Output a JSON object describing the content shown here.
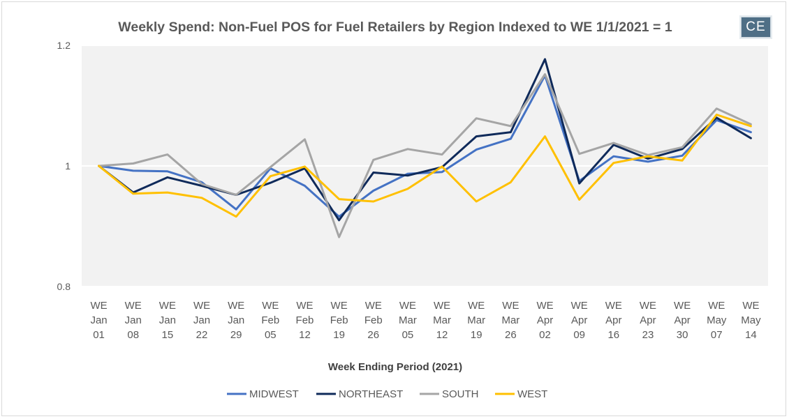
{
  "badge": {
    "text": "CE"
  },
  "chart_data": {
    "type": "line",
    "title": "Weekly Spend: Non-Fuel POS for Fuel Retailers by Region Indexed to WE 1/1/2021 = 1",
    "xlabel": "Week Ending Period (2021)",
    "ylabel": "",
    "ylim": [
      0.8,
      1.2
    ],
    "yticks": [
      "0.8",
      "1",
      "1.2"
    ],
    "categories": [
      [
        "WE",
        "Jan",
        "01"
      ],
      [
        "WE",
        "Jan",
        "08"
      ],
      [
        "WE",
        "Jan",
        "15"
      ],
      [
        "WE",
        "Jan",
        "22"
      ],
      [
        "WE",
        "Jan",
        "29"
      ],
      [
        "WE",
        "Feb",
        "05"
      ],
      [
        "WE",
        "Feb",
        "12"
      ],
      [
        "WE",
        "Feb",
        "19"
      ],
      [
        "WE",
        "Feb",
        "26"
      ],
      [
        "WE",
        "Mar",
        "05"
      ],
      [
        "WE",
        "Mar",
        "12"
      ],
      [
        "WE",
        "Mar",
        "19"
      ],
      [
        "WE",
        "Mar",
        "26"
      ],
      [
        "WE",
        "Apr",
        "02"
      ],
      [
        "WE",
        "Apr",
        "09"
      ],
      [
        "WE",
        "Apr",
        "16"
      ],
      [
        "WE",
        "Apr",
        "23"
      ],
      [
        "WE",
        "Apr",
        "30"
      ],
      [
        "WE",
        "May",
        "07"
      ],
      [
        "WE",
        "May",
        "14"
      ]
    ],
    "grid": "y-major-white",
    "plot_background": "#f2f2f2",
    "legend_position": "bottom",
    "series": [
      {
        "name": "MIDWEST",
        "color": "#4472c4",
        "values": [
          1.0,
          0.992,
          0.991,
          0.973,
          0.928,
          0.996,
          0.967,
          0.916,
          0.959,
          0.987,
          0.99,
          1.027,
          1.045,
          1.15,
          0.975,
          1.016,
          1.007,
          1.017,
          1.076,
          1.056
        ]
      },
      {
        "name": "NORTHEAST",
        "color": "#0f2a5a",
        "values": [
          1.0,
          0.956,
          0.981,
          0.967,
          0.952,
          0.972,
          0.996,
          0.91,
          0.989,
          0.984,
          0.998,
          1.049,
          1.056,
          1.177,
          0.971,
          1.035,
          1.012,
          1.028,
          1.08,
          1.046
        ]
      },
      {
        "name": "SOUTH",
        "color": "#a5a5a5",
        "values": [
          1.0,
          1.004,
          1.019,
          0.97,
          0.952,
          0.998,
          1.044,
          0.882,
          1.01,
          1.028,
          1.019,
          1.079,
          1.066,
          1.152,
          1.02,
          1.038,
          1.018,
          1.031,
          1.095,
          1.069
        ]
      },
      {
        "name": "WEST",
        "color": "#ffc000",
        "values": [
          1.0,
          0.954,
          0.956,
          0.947,
          0.916,
          0.983,
          0.999,
          0.945,
          0.941,
          0.962,
          0.999,
          0.941,
          0.973,
          1.049,
          0.944,
          1.005,
          1.016,
          1.009,
          1.085,
          1.066
        ]
      }
    ]
  }
}
